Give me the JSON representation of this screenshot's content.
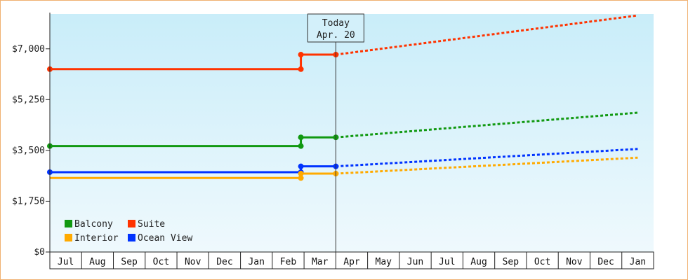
{
  "chart_data": {
    "type": "line",
    "x_categories": [
      "Jul",
      "Aug",
      "Sep",
      "Oct",
      "Nov",
      "Dec",
      "Jan",
      "Feb",
      "Mar",
      "Apr",
      "May",
      "Jun",
      "Jul",
      "Aug",
      "Sep",
      "Oct",
      "Nov",
      "Dec",
      "Jan"
    ],
    "y_ticks": [
      {
        "value": 0,
        "label": "$0"
      },
      {
        "value": 1750,
        "label": "$1,750"
      },
      {
        "value": 3500,
        "label": "$3,500"
      },
      {
        "value": 5250,
        "label": "$5,250"
      },
      {
        "value": 7000,
        "label": "$7,000"
      }
    ],
    "ylim": [
      0,
      8200
    ],
    "today": {
      "title": "Today",
      "date": "Apr. 20",
      "x": 9.0
    },
    "series": [
      {
        "name": "Suite",
        "color": "#ff3300",
        "history": [
          [
            0,
            6300
          ],
          [
            7.9,
            6300
          ],
          [
            7.9,
            6800
          ],
          [
            9.0,
            6800
          ]
        ],
        "markers": [
          [
            0,
            6300
          ],
          [
            7.9,
            6300
          ],
          [
            7.9,
            6800
          ],
          [
            9.0,
            6800
          ]
        ],
        "forecast": [
          [
            9.0,
            6800
          ],
          [
            18.5,
            8150
          ]
        ]
      },
      {
        "name": "Balcony",
        "color": "#119911",
        "history": [
          [
            0,
            3650
          ],
          [
            7.9,
            3650
          ],
          [
            7.9,
            3950
          ],
          [
            9.0,
            3950
          ]
        ],
        "markers": [
          [
            0,
            3650
          ],
          [
            7.9,
            3650
          ],
          [
            7.9,
            3950
          ],
          [
            9.0,
            3950
          ]
        ],
        "forecast": [
          [
            9.0,
            3950
          ],
          [
            18.5,
            4800
          ]
        ]
      },
      {
        "name": "Ocean View",
        "color": "#0033ff",
        "history": [
          [
            0,
            2750
          ],
          [
            7.9,
            2750
          ],
          [
            7.9,
            2950
          ],
          [
            9.0,
            2950
          ]
        ],
        "markers": [
          [
            0,
            2750
          ],
          [
            7.9,
            2750
          ],
          [
            7.9,
            2950
          ],
          [
            9.0,
            2950
          ]
        ],
        "forecast": [
          [
            9.0,
            2950
          ],
          [
            18.5,
            3550
          ]
        ]
      },
      {
        "name": "Interior",
        "color": "#ffaa00",
        "history": [
          [
            0,
            2550
          ],
          [
            7.9,
            2550
          ],
          [
            7.9,
            2700
          ],
          [
            9.0,
            2700
          ]
        ],
        "markers": [
          [
            7.9,
            2550
          ],
          [
            7.9,
            2700
          ],
          [
            9.0,
            2700
          ]
        ],
        "forecast": [
          [
            9.0,
            2700
          ],
          [
            18.5,
            3250
          ]
        ]
      }
    ],
    "legend": {
      "placement": "bottom-left",
      "entries": [
        {
          "name": "Balcony",
          "color": "#119911"
        },
        {
          "name": "Suite",
          "color": "#ff3300"
        },
        {
          "name": "Interior",
          "color": "#ffaa00"
        },
        {
          "name": "Ocean View",
          "color": "#0033ff"
        }
      ]
    },
    "grid": false
  }
}
